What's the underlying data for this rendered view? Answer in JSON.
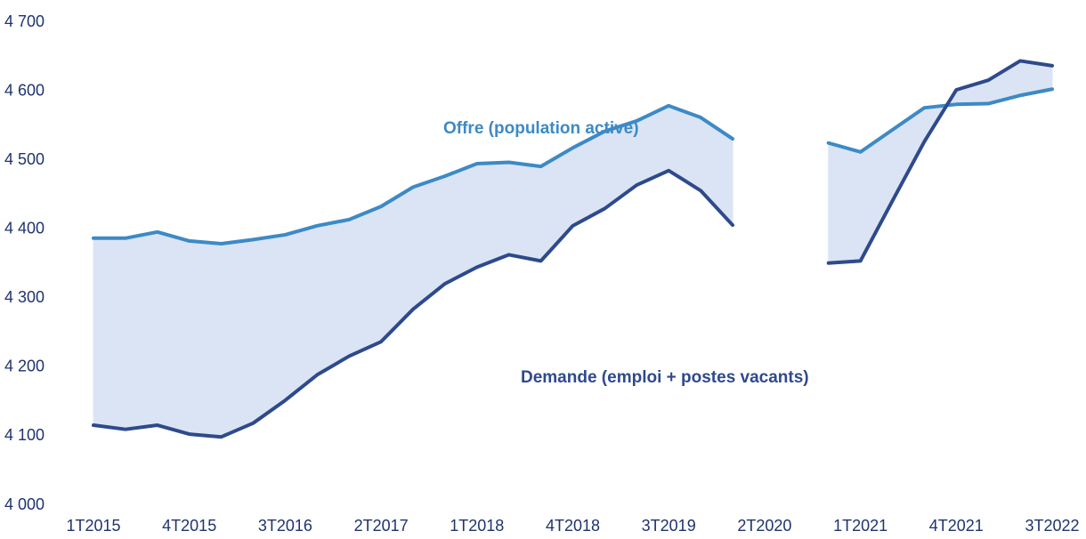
{
  "chart_data": {
    "type": "line",
    "categories": [
      "1T2015",
      null,
      null,
      "4T2015",
      null,
      null,
      "3T2016",
      null,
      null,
      "2T2017",
      null,
      null,
      "1T2018",
      null,
      null,
      "4T2018",
      null,
      null,
      "3T2019",
      null,
      null,
      "2T2020",
      null,
      null,
      "1T2021",
      null,
      null,
      "4T2021",
      null,
      null,
      "3T2022"
    ],
    "series": [
      {
        "name": "Offre (population active)",
        "color": "#3c8ac6",
        "values": [
          4387,
          4387,
          4396,
          4383,
          4379,
          4385,
          4392,
          4405,
          4414,
          4433,
          4461,
          4477,
          4495,
          4497,
          4491,
          4518,
          4542,
          4557,
          4579,
          4562,
          4531,
          null,
          null,
          4525,
          4512,
          4544,
          4576,
          4581,
          4582,
          4594,
          4603
        ]
      },
      {
        "name": "Demande (emploi + postes vacants)",
        "color": "#2e4a8c",
        "values": [
          4116,
          4110,
          4116,
          4103,
          4099,
          4119,
          4152,
          4189,
          4216,
          4237,
          4284,
          4321,
          4345,
          4363,
          4354,
          4405,
          4430,
          4464,
          4485,
          4456,
          4406,
          null,
          null,
          4351,
          4354,
          4441,
          4527,
          4602,
          4616,
          4644,
          4637
        ]
      }
    ],
    "area_color": "#dbe4f4",
    "ylim": [
      4000,
      4700
    ],
    "yticks": [
      {
        "value": 4000,
        "label": "4 000"
      },
      {
        "value": 4100,
        "label": "4 100"
      },
      {
        "value": 4200,
        "label": "4 200"
      },
      {
        "value": 4300,
        "label": "4 300"
      },
      {
        "value": 4400,
        "label": "4 400"
      },
      {
        "value": 4500,
        "label": "4 500"
      },
      {
        "value": 4600,
        "label": "4 600"
      },
      {
        "value": 4700,
        "label": "4 700"
      }
    ],
    "grid": false
  }
}
